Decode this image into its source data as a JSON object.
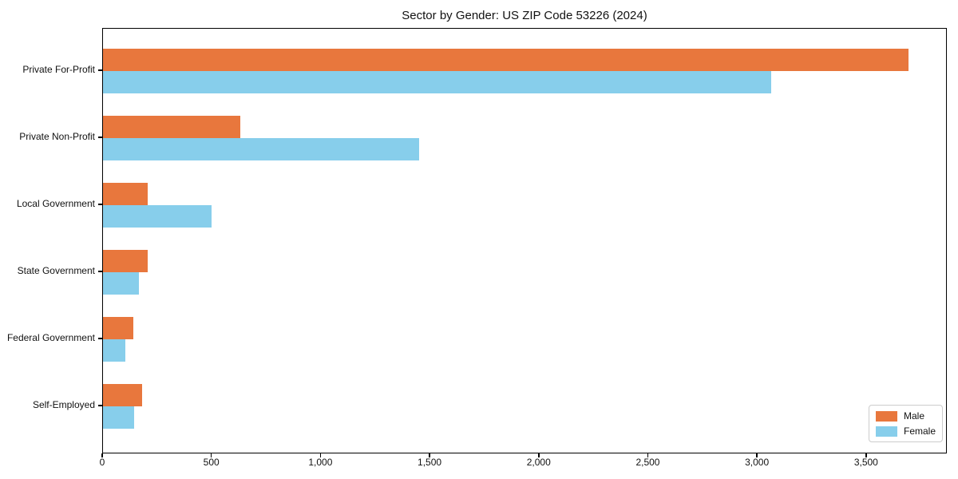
{
  "figure": {
    "title": "Sector by Gender: US ZIP Code 53226 (2024)"
  },
  "chart_data": {
    "type": "bar",
    "orientation": "horizontal",
    "title": "Sector by Gender: US ZIP Code 53226 (2024)",
    "xlabel": "",
    "ylabel": "",
    "categories": [
      "Private For-Profit",
      "Private Non-Profit",
      "Local Government",
      "State Government",
      "Federal Government",
      "Self-Employed"
    ],
    "series": [
      {
        "name": "Male",
        "color": "#E8773D",
        "values": [
          3690,
          630,
          205,
          205,
          140,
          180
        ]
      },
      {
        "name": "Female",
        "color": "#87CEEB",
        "values": [
          3060,
          1450,
          497,
          165,
          103,
          143
        ]
      }
    ],
    "xlim": [
      0,
      3870
    ],
    "xticks": [
      0,
      500,
      1000,
      1500,
      2000,
      2500,
      3000,
      3500
    ],
    "xtick_labels": [
      "0",
      "500",
      "1,000",
      "1,500",
      "2,000",
      "2,500",
      "3,000",
      "3,500"
    ],
    "grid": false,
    "legend_position": "lower right",
    "axis_color": "#000000",
    "background_color": "#ffffff"
  }
}
